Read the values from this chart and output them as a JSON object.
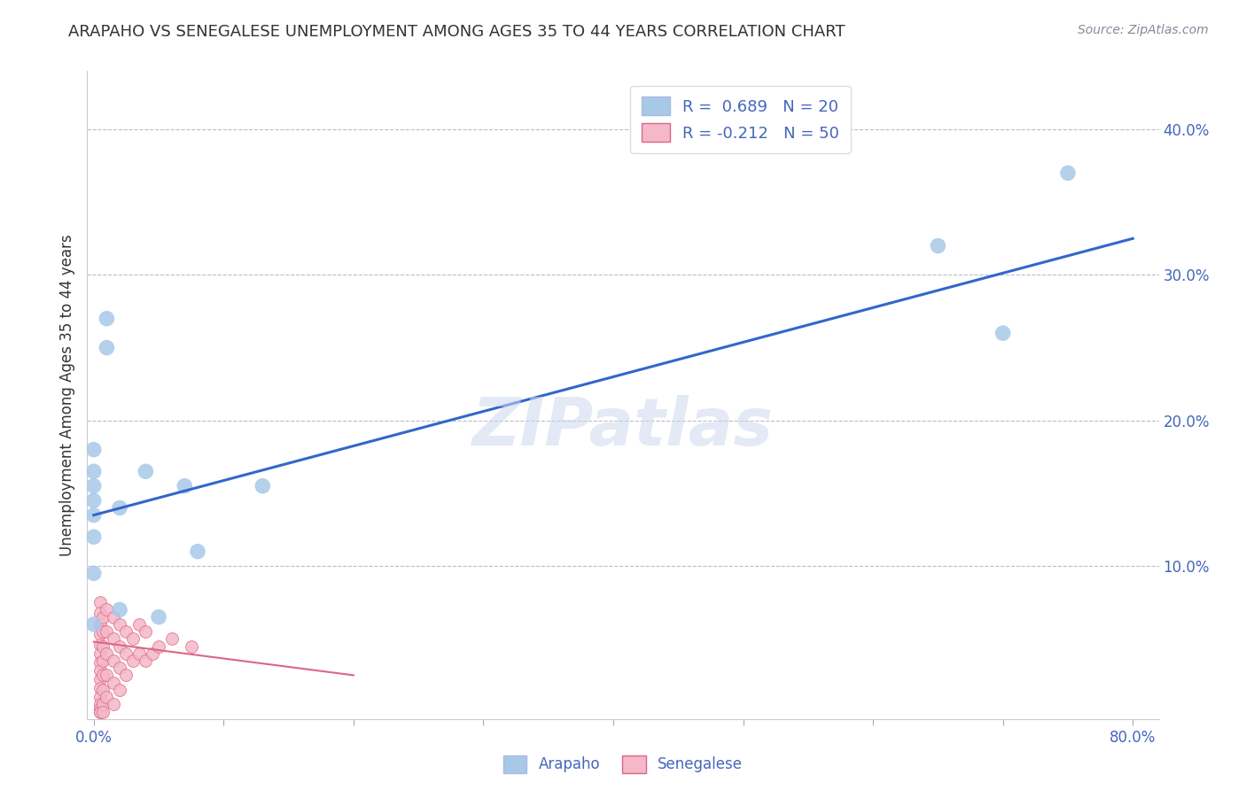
{
  "title": "ARAPAHO VS SENEGALESE UNEMPLOYMENT AMONG AGES 35 TO 44 YEARS CORRELATION CHART",
  "source": "Source: ZipAtlas.com",
  "ylabel": "Unemployment Among Ages 35 to 44 years",
  "xlim": [
    -0.005,
    0.82
  ],
  "ylim": [
    -0.005,
    0.44
  ],
  "xticks": [
    0.0,
    0.1,
    0.2,
    0.3,
    0.4,
    0.5,
    0.6,
    0.7,
    0.8
  ],
  "xticklabels": [
    "0.0%",
    "",
    "",
    "",
    "",
    "",
    "",
    "",
    "80.0%"
  ],
  "yticks": [
    0.0,
    0.1,
    0.2,
    0.3,
    0.4
  ],
  "yticklabels": [
    "",
    "10.0%",
    "20.0%",
    "30.0%",
    "40.0%"
  ],
  "arapaho_color": "#a8c8e8",
  "senegalese_color": "#f4b8c8",
  "arapaho_line_color": "#3366cc",
  "senegalese_line_color": "#dd6688",
  "watermark": "ZIPatlas",
  "arapaho_x": [
    0.01,
    0.01,
    0.0,
    0.0,
    0.0,
    0.0,
    0.0,
    0.0,
    0.02,
    0.04,
    0.08,
    0.07,
    0.7,
    0.75,
    0.65,
    0.02,
    0.13,
    0.0,
    0.0,
    0.05
  ],
  "arapaho_y": [
    0.27,
    0.25,
    0.18,
    0.165,
    0.155,
    0.145,
    0.135,
    0.12,
    0.14,
    0.165,
    0.11,
    0.155,
    0.26,
    0.37,
    0.32,
    0.07,
    0.155,
    0.095,
    0.06,
    0.065
  ],
  "senegalese_x": [
    0.005,
    0.005,
    0.005,
    0.005,
    0.005,
    0.005,
    0.005,
    0.005,
    0.005,
    0.005,
    0.005,
    0.005,
    0.005,
    0.005,
    0.005,
    0.007,
    0.007,
    0.007,
    0.007,
    0.007,
    0.007,
    0.007,
    0.007,
    0.01,
    0.01,
    0.01,
    0.01,
    0.01,
    0.015,
    0.015,
    0.015,
    0.015,
    0.015,
    0.02,
    0.02,
    0.02,
    0.02,
    0.025,
    0.025,
    0.025,
    0.03,
    0.03,
    0.035,
    0.035,
    0.04,
    0.04,
    0.045,
    0.05,
    0.06,
    0.075
  ],
  "senegalese_y": [
    0.075,
    0.068,
    0.06,
    0.053,
    0.046,
    0.04,
    0.034,
    0.028,
    0.022,
    0.016,
    0.01,
    0.005,
    0.002,
    0.0,
    0.0,
    0.065,
    0.055,
    0.045,
    0.035,
    0.025,
    0.015,
    0.005,
    0.0,
    0.07,
    0.055,
    0.04,
    0.025,
    0.01,
    0.065,
    0.05,
    0.035,
    0.02,
    0.005,
    0.06,
    0.045,
    0.03,
    0.015,
    0.055,
    0.04,
    0.025,
    0.05,
    0.035,
    0.06,
    0.04,
    0.055,
    0.035,
    0.04,
    0.045,
    0.05,
    0.045
  ],
  "arapaho_line_x": [
    0.0,
    0.8
  ],
  "arapaho_line_y": [
    0.135,
    0.325
  ],
  "senegalese_line_x": [
    0.0,
    0.2
  ],
  "senegalese_line_y": [
    0.048,
    0.025
  ],
  "legend_blue_label": "R =  0.689   N = 20",
  "legend_pink_label": "R = -0.212   N = 50",
  "background_color": "#ffffff",
  "grid_color": "#bbbbcc",
  "axis_color": "#4466bb",
  "title_color": "#333333",
  "source_color": "#888899"
}
